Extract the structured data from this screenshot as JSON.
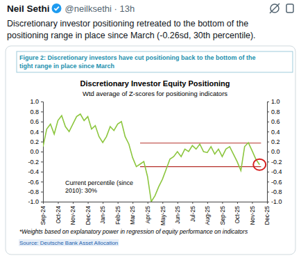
{
  "tweet": {
    "author": "Neil Sethi",
    "meta": "@neilksethi · 13h",
    "text": [
      "Discretionary investor positioning retreated to the bottom of the",
      "positioning range in place since March (-0.26sd, 30th percentile)."
    ]
  },
  "chart_data": {
    "type": "line",
    "figure_title": [
      "Figure 2: Discretionary investors have cut positioning back to the bottom of the",
      "tight range in place since March"
    ],
    "title": "Discretionary Investor Equity Positioning",
    "subtitle": "Wtd average of Z-scores for positioning indicators",
    "annotation": [
      "Current percentile (since",
      "2010): 30%"
    ],
    "footnote": "*Weights based on explanatory power in regression of equity performance on indicators",
    "source": "Source: Deutsche Bank Asset Allocation",
    "x": [
      0,
      0.25,
      0.5,
      0.75,
      1,
      1.25,
      1.5,
      1.75,
      2,
      2.25,
      2.5,
      2.75,
      3,
      3.25,
      3.5,
      3.75,
      4,
      4.25,
      4.5,
      4.75,
      5,
      5.25,
      5.5,
      5.75,
      6,
      6.25,
      6.5,
      6.75,
      7,
      7.25,
      7.5,
      7.75,
      8,
      8.25,
      8.5,
      8.75,
      9,
      9.25,
      9.5,
      9.75,
      10,
      10.25,
      10.5,
      10.75,
      11,
      11.25,
      11.5,
      11.75,
      12,
      12.25,
      12.5,
      12.75,
      13,
      13.25,
      13.5,
      13.75,
      14,
      14.25,
      14.5
    ],
    "series": [
      {
        "name": "Discretionary Investor Equity Positioning",
        "color": "#8cc63e",
        "values": [
          0.1,
          0.45,
          0.55,
          0.35,
          0.62,
          0.72,
          0.5,
          0.4,
          0.55,
          0.7,
          0.75,
          0.62,
          0.7,
          0.45,
          0.52,
          0.3,
          0.18,
          0.3,
          0.5,
          0.42,
          0.55,
          0.6,
          0.3,
          0.15,
          -0.12,
          -0.3,
          -0.25,
          -0.2,
          -0.5,
          -1.0,
          -0.88,
          -0.7,
          -0.55,
          -0.35,
          -0.15,
          -0.1,
          0.0,
          -0.1,
          0.05,
          0.0,
          0.12,
          0.05,
          0.15,
          0.0,
          -0.02,
          0.1,
          -0.05,
          0.05,
          -0.1,
          0.05,
          0.1,
          -0.05,
          -0.2,
          -0.38,
          0.1,
          0.18,
          0.02,
          -0.15,
          -0.26
        ]
      }
    ],
    "xlim": [
      0,
      15
    ],
    "xticks": [
      {
        "value": 0,
        "label": "Sep-24"
      },
      {
        "value": 1,
        "label": "Oct-24"
      },
      {
        "value": 2,
        "label": "Nov-24"
      },
      {
        "value": 3,
        "label": "Dec-24"
      },
      {
        "value": 4,
        "label": "Jan-25"
      },
      {
        "value": 5,
        "label": "Feb-25"
      },
      {
        "value": 6,
        "label": "Mar-25"
      },
      {
        "value": 7,
        "label": "Apr-25"
      },
      {
        "value": 8,
        "label": "May-25"
      },
      {
        "value": 9,
        "label": "Jun-25"
      },
      {
        "value": 10,
        "label": "Jul-25"
      },
      {
        "value": 11,
        "label": "Aug-25"
      },
      {
        "value": 12,
        "label": "Sep-25"
      },
      {
        "value": 13,
        "label": "Oct-25"
      },
      {
        "value": 14,
        "label": "Nov-25"
      },
      {
        "value": 15,
        "label": "Dec-25"
      }
    ],
    "ylim": [
      -1,
      1
    ],
    "yticks": [
      {
        "value": 1,
        "label": "1.0"
      },
      {
        "value": 0.8,
        "label": "0.8"
      },
      {
        "value": 0.6,
        "label": "0.6"
      },
      {
        "value": 0.4,
        "label": "0.4"
      },
      {
        "value": 0.2,
        "label": "0.2"
      },
      {
        "value": 0,
        "label": "0.0"
      },
      {
        "value": -0.2,
        "label": "-0.2"
      },
      {
        "value": -0.4,
        "label": "-0.4"
      },
      {
        "value": -0.6,
        "label": "-0.6"
      },
      {
        "value": -0.8,
        "label": "-0.8"
      },
      {
        "value": -1,
        "label": "-1.0"
      }
    ],
    "y2lim": [
      -1,
      1
    ],
    "y2ticks": [
      {
        "value": 1,
        "label": "1.0"
      },
      {
        "value": 0.8,
        "label": "0.8"
      },
      {
        "value": 0.6,
        "label": "0.6"
      },
      {
        "value": 0.4,
        "label": "0.4"
      },
      {
        "value": 0.2,
        "label": "0.2"
      },
      {
        "value": 0,
        "label": "0.0"
      },
      {
        "value": -0.2,
        "label": "-0.2"
      },
      {
        "value": -0.4,
        "label": "-0.4"
      },
      {
        "value": -0.6,
        "label": "-0.6"
      },
      {
        "value": -0.8,
        "label": "-0.8"
      },
      {
        "value": -1,
        "label": "-1.0"
      }
    ],
    "reference_lines": [
      {
        "value": 0.17,
        "x": [
          6.5,
          14.6
        ],
        "color": "#b5302a"
      },
      {
        "value": -0.3,
        "x": [
          6.5,
          14.6
        ],
        "color": "#b5302a"
      }
    ],
    "highlight": {
      "x": 14.5,
      "y": -0.26,
      "color": "#d62020"
    },
    "grid": false
  }
}
